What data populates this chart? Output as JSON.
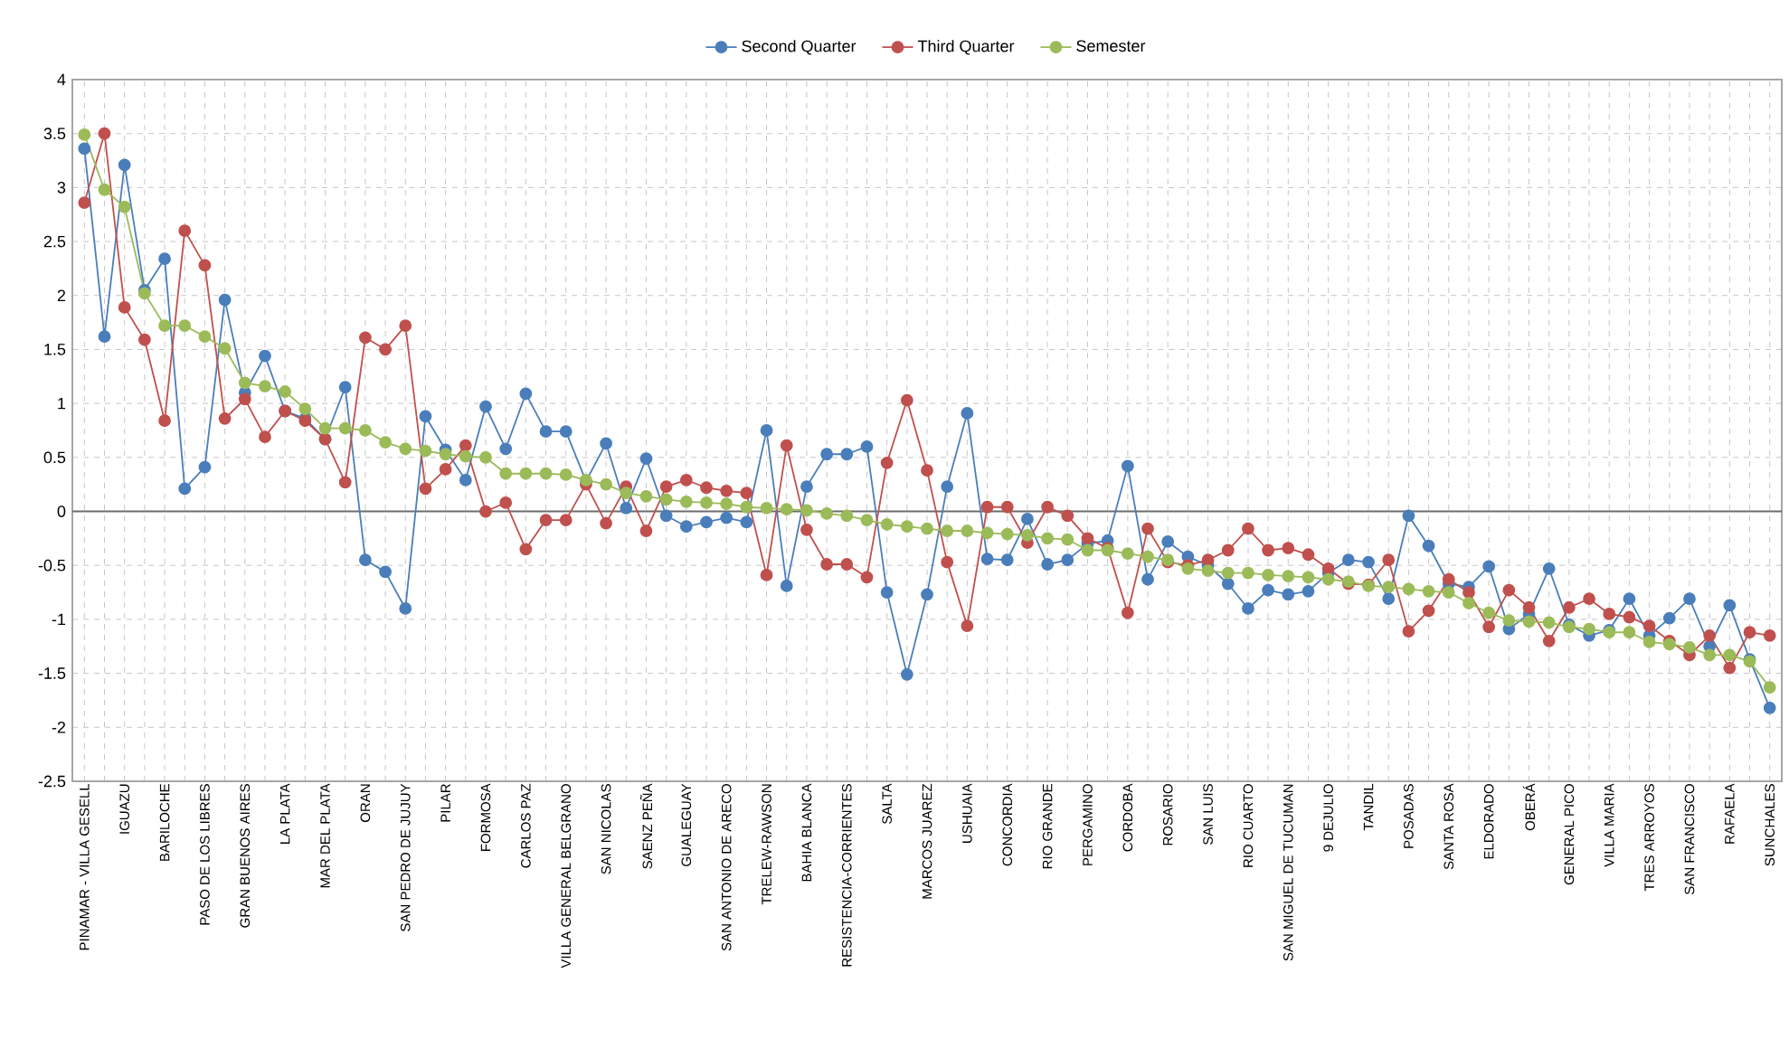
{
  "chart_data": {
    "type": "line",
    "categories": [
      "PINAMAR - VILLA GESELL",
      null,
      "IGUAZU",
      null,
      "BARILOCHE",
      null,
      "PASO DE LOS LIBRES",
      null,
      "GRAN BUENOS AIRES",
      null,
      "LA PLATA",
      null,
      "MAR DEL PLATA",
      null,
      "ORAN",
      null,
      "SAN PEDRO DE JUJUY",
      null,
      "PILAR",
      null,
      "FORMOSA",
      null,
      "CARLOS PAZ",
      null,
      "VILLA GENERAL BELGRANO",
      null,
      "SAN NICOLAS",
      null,
      "SAENZ PEÑA",
      null,
      "GUALEGUAY",
      null,
      "SAN ANTONIO DE ARECO",
      null,
      "TRELEW-RAWSON",
      null,
      "BAHIA BLANCA",
      null,
      "RESISTENCIA-CORRIENTES",
      null,
      "SALTA",
      null,
      "MARCOS JUAREZ",
      null,
      "USHUAIA",
      null,
      "CONCORDIA",
      null,
      "RIO GRANDE",
      null,
      "PERGAMINO",
      null,
      "CORDOBA",
      null,
      "ROSARIO",
      null,
      "SAN LUIS",
      null,
      "RIO CUARTO",
      null,
      "SAN MIGUEL DE TUCUMAN",
      null,
      "9 DEJULIO",
      null,
      "TANDIL",
      null,
      "POSADAS",
      null,
      "SANTA ROSA",
      null,
      "ELDORADO",
      null,
      "OBERÁ",
      null,
      "GENERAL PICO",
      null,
      "VILLA MARIA",
      null,
      "TRES ARROYOS",
      null,
      "SAN FRANCISCO",
      null,
      "RAFAELA",
      null,
      "SUNCHALES"
    ],
    "series": [
      {
        "name": "Second Quarter",
        "color": "#4a7ebb",
        "values": [
          3.36,
          1.62,
          3.21,
          2.05,
          2.34,
          0.21,
          0.41,
          1.96,
          1.1,
          1.44,
          0.93,
          0.86,
          0.67,
          1.15,
          -0.45,
          -0.56,
          -0.9,
          0.88,
          0.57,
          0.29,
          0.97,
          0.58,
          1.09,
          0.74,
          0.74,
          0.28,
          0.63,
          0.03,
          0.49,
          -0.04,
          -0.14,
          -0.1,
          -0.06,
          -0.1,
          0.75,
          -0.69,
          0.23,
          0.53,
          0.53,
          0.6,
          -0.75,
          -1.51,
          -0.77,
          0.23,
          0.91,
          -0.44,
          -0.45,
          -0.07,
          -0.49,
          -0.45,
          -0.3,
          -0.27,
          0.42,
          -0.63,
          -0.28,
          -0.42,
          -0.5,
          -0.67,
          -0.9,
          -0.73,
          -0.77,
          -0.74,
          -0.57,
          -0.45,
          -0.47,
          -0.81,
          -0.04,
          -0.32,
          -0.67,
          -0.7,
          -0.51,
          -1.09,
          -0.95,
          -0.53,
          -1.05,
          -1.15,
          -1.1,
          -0.81,
          -1.15,
          -0.99,
          -0.81,
          -1.25,
          -0.87,
          -1.37,
          -1.82
        ]
      },
      {
        "name": "Third Quarter",
        "color": "#c0504d",
        "values": [
          2.86,
          3.5,
          1.89,
          1.59,
          0.84,
          2.6,
          2.28,
          0.86,
          1.04,
          0.69,
          0.93,
          0.84,
          0.67,
          0.27,
          1.61,
          1.5,
          1.72,
          0.21,
          0.39,
          0.61,
          0.0,
          0.08,
          -0.35,
          -0.08,
          -0.08,
          0.25,
          -0.11,
          0.23,
          -0.18,
          0.23,
          0.29,
          0.22,
          0.19,
          0.17,
          -0.59,
          0.61,
          -0.17,
          -0.49,
          -0.49,
          -0.61,
          0.45,
          1.03,
          0.38,
          -0.47,
          -1.06,
          0.04,
          0.04,
          -0.29,
          0.04,
          -0.04,
          -0.25,
          -0.34,
          -0.94,
          -0.16,
          -0.47,
          -0.5,
          -0.45,
          -0.36,
          -0.16,
          -0.36,
          -0.34,
          -0.4,
          -0.53,
          -0.67,
          -0.68,
          -0.45,
          -1.11,
          -0.92,
          -0.63,
          -0.75,
          -1.07,
          -0.73,
          -0.89,
          -1.2,
          -0.89,
          -0.81,
          -0.95,
          -0.98,
          -1.06,
          -1.2,
          -1.33,
          -1.15,
          -1.45,
          -1.12,
          -1.15
        ]
      },
      {
        "name": "Semester",
        "color": "#9bbb59",
        "values": [
          3.49,
          2.98,
          2.82,
          2.02,
          1.72,
          1.72,
          1.62,
          1.51,
          1.19,
          1.16,
          1.11,
          0.95,
          0.77,
          0.77,
          0.75,
          0.64,
          0.58,
          0.56,
          0.53,
          0.51,
          0.5,
          0.35,
          0.35,
          0.35,
          0.34,
          0.29,
          0.25,
          0.17,
          0.14,
          0.11,
          0.09,
          0.08,
          0.07,
          0.04,
          0.03,
          0.02,
          0.01,
          -0.02,
          -0.04,
          -0.08,
          -0.12,
          -0.14,
          -0.16,
          -0.18,
          -0.18,
          -0.2,
          -0.21,
          -0.22,
          -0.25,
          -0.26,
          -0.36,
          -0.36,
          -0.39,
          -0.42,
          -0.45,
          -0.53,
          -0.55,
          -0.57,
          -0.57,
          -0.59,
          -0.6,
          -0.61,
          -0.63,
          -0.65,
          -0.69,
          -0.7,
          -0.72,
          -0.74,
          -0.75,
          -0.85,
          -0.94,
          -1.01,
          -1.02,
          -1.03,
          -1.07,
          -1.09,
          -1.12,
          -1.12,
          -1.21,
          -1.23,
          -1.26,
          -1.33,
          -1.33,
          -1.39,
          -1.63
        ]
      }
    ],
    "ylim": [
      -2.5,
      4
    ],
    "yticks": [
      -2.5,
      -2,
      -1.5,
      -1,
      -0.5,
      0,
      0.5,
      1,
      1.5,
      2,
      2.5,
      3,
      3.5,
      4
    ],
    "grid": true,
    "legend": "top",
    "marker": "circle",
    "line_style": "solid"
  }
}
